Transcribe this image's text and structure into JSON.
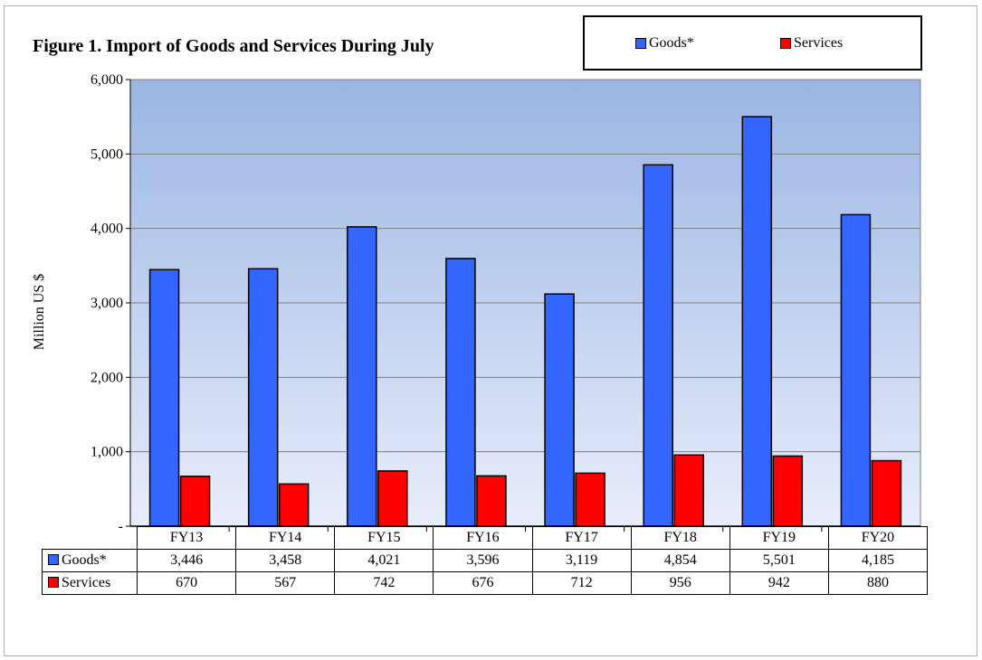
{
  "chart_data": {
    "type": "bar",
    "title": "Figure 1. Import of Goods and Services  During July",
    "ylabel": "Million US $",
    "ylim": [
      0,
      6000
    ],
    "yticks": [
      "-",
      "1,000",
      "2,000",
      "3,000",
      "4,000",
      "5,000",
      "6,000"
    ],
    "grid": true,
    "legend_position": "top-right",
    "categories": [
      "FY13",
      "FY14",
      "FY15",
      "FY16",
      "FY17",
      "FY18",
      "FY19",
      "FY20"
    ],
    "series": [
      {
        "name": "Goods*",
        "color": "#3366ff",
        "values": [
          3446,
          3458,
          4021,
          3596,
          3119,
          4854,
          5501,
          4185
        ],
        "labels": [
          "3,446",
          "3,458",
          "4,021",
          "3,596",
          "3,119",
          "4,854",
          "5,501",
          "4,185"
        ]
      },
      {
        "name": "Services",
        "color": "#ff0000",
        "values": [
          670,
          567,
          742,
          676,
          712,
          956,
          942,
          880
        ],
        "labels": [
          "670",
          "567",
          "742",
          "676",
          "712",
          "956",
          "942",
          "880"
        ]
      }
    ]
  },
  "colors": {
    "plot_top": "#9ab5e3",
    "plot_bottom": "#e8edfa"
  }
}
